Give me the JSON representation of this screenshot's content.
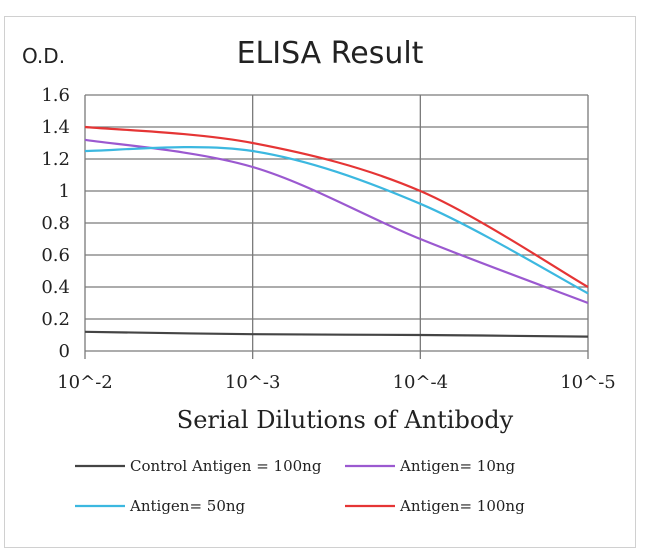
{
  "chart_data": {
    "type": "line",
    "title": "ELISA Result",
    "ylabel": "O.D.",
    "xlabel": "Serial Dilutions  of Antibody",
    "x_categories": [
      "10^-2",
      "10^-3",
      "10^-4",
      "10^-5"
    ],
    "y_ticks": [
      "0",
      "0.2",
      "0.4",
      "0.6",
      "0.8",
      "1",
      "1.2",
      "1.4",
      "1.6"
    ],
    "ylim": [
      0,
      1.6
    ],
    "grid": true,
    "legend_position": "bottom",
    "series": [
      {
        "name": "Control Antigen = 100ng",
        "color": "#444444",
        "values": [
          0.12,
          0.105,
          0.1,
          0.09
        ]
      },
      {
        "name": "Antigen= 10ng",
        "color": "#9b59d0",
        "values": [
          1.32,
          1.15,
          0.7,
          0.3
        ]
      },
      {
        "name": "Antigen= 50ng",
        "color": "#3cb8e0",
        "values": [
          1.25,
          1.25,
          0.92,
          0.36
        ]
      },
      {
        "name": "Antigen= 100ng",
        "color": "#e53535",
        "values": [
          1.4,
          1.3,
          1.0,
          0.4
        ]
      }
    ]
  }
}
